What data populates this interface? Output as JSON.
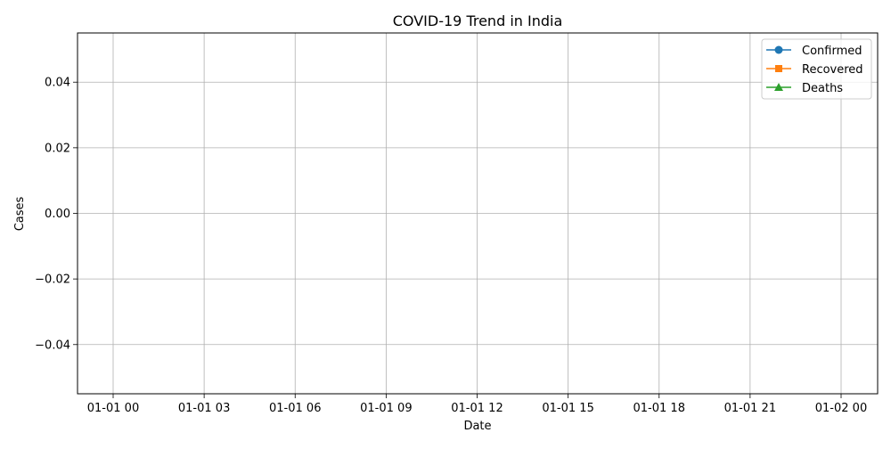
{
  "chart_data": {
    "type": "line",
    "title": "COVID-19 Trend in India",
    "xlabel": "Date",
    "ylabel": "Cases",
    "x_ticks": [
      "01-01 00",
      "01-01 03",
      "01-01 06",
      "01-01 09",
      "01-01 12",
      "01-01 15",
      "01-01 18",
      "01-01 21",
      "01-02 00"
    ],
    "y_ticks": [
      0.04,
      0.02,
      0.0,
      -0.02,
      -0.04
    ],
    "y_tick_labels": [
      "0.04",
      "0.02",
      "0.00",
      "−0.02",
      "−0.04"
    ],
    "ylim": [
      -0.055,
      0.055
    ],
    "grid": true,
    "legend_position": "top-right",
    "series": [
      {
        "name": "Confirmed",
        "color": "#1f77b4",
        "marker": "circle",
        "values": []
      },
      {
        "name": "Recovered",
        "color": "#ff7f0e",
        "marker": "square",
        "values": []
      },
      {
        "name": "Deaths",
        "color": "#2ca02c",
        "marker": "triangle",
        "values": []
      }
    ]
  }
}
